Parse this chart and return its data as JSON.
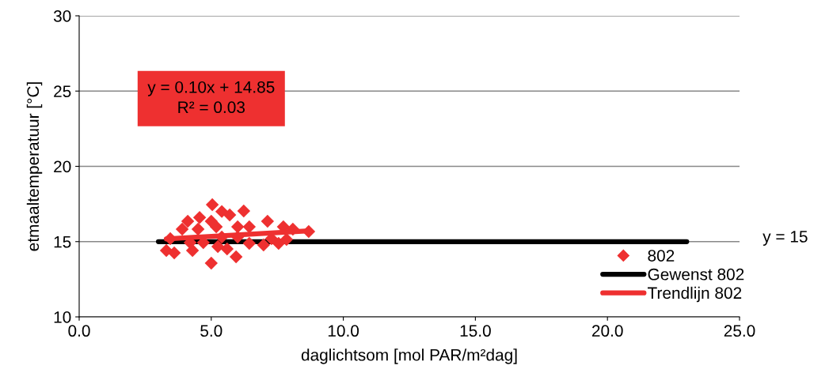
{
  "chart_data": {
    "type": "scatter",
    "xlabel": "daglichtsom [mol PAR/m²dag]",
    "ylabel": "etmaaltemperatuur [°C]",
    "xlim": [
      0,
      25
    ],
    "xticks": [
      {
        "value": 0,
        "label": "0.0"
      },
      {
        "value": 5,
        "label": "5.0"
      },
      {
        "value": 10,
        "label": "10.0"
      },
      {
        "value": 15,
        "label": "15.0"
      },
      {
        "value": 20,
        "label": "20.0"
      },
      {
        "value": 25,
        "label": "25.0"
      }
    ],
    "ylim": [
      10,
      30
    ],
    "yticks": [
      10,
      15,
      20,
      25,
      30
    ],
    "grid": "y",
    "legend": "bottom right",
    "series": [
      {
        "name": "802",
        "color": "#ee3030",
        "marker": "diamond",
        "x": [
          5.04,
          6.23,
          4.56,
          4.11,
          5.7,
          5.4,
          7.13,
          7.73,
          6.44,
          8.09,
          8.69,
          3.6,
          4.29,
          5.0,
          5.94,
          6.44,
          6.98,
          7.55,
          5.6,
          4.7,
          3.45,
          3.9,
          4.5,
          5.19,
          5.4,
          6.0,
          7.28,
          7.85,
          5.0,
          6.0,
          4.2,
          5.25,
          3.3
        ],
        "values": [
          17.45,
          17.03,
          16.6,
          16.35,
          16.77,
          17.0,
          16.35,
          15.98,
          15.98,
          15.83,
          15.67,
          14.25,
          14.41,
          13.57,
          13.99,
          14.88,
          14.78,
          14.88,
          14.51,
          14.93,
          15.2,
          15.83,
          15.83,
          15.98,
          15.3,
          15.3,
          15.2,
          15.14,
          16.35,
          15.98,
          14.93,
          14.67,
          14.41
        ]
      },
      {
        "name": "Gewenst 802",
        "type": "line",
        "color": "#000000",
        "x": [
          3,
          23
        ],
        "values": [
          15,
          15
        ]
      },
      {
        "name": "Trendlijn 802",
        "type": "line",
        "color": "#ee3030",
        "x": [
          3.3,
          8.7
        ],
        "values": [
          15.18,
          15.72
        ]
      }
    ],
    "annotations": [
      "y = 0.10x + 14.85\nR² = 0.03",
      "y = 15"
    ]
  }
}
